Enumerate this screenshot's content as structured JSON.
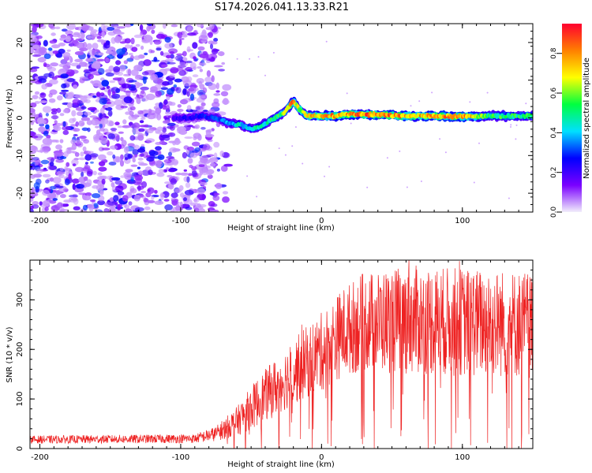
{
  "title": "S174.2026.041.13.33.R21",
  "colors": {
    "snr_line": "#ee2222",
    "axis": "#000000",
    "background": "#ffffff"
  },
  "chart_data": [
    {
      "type": "heatmap",
      "name": "spectrogram",
      "xlabel": "Height of straight line (km)",
      "ylabel": "Frequency (Hz)",
      "xlim": [
        -207,
        150
      ],
      "ylim": [
        -25,
        25
      ],
      "xticks": [
        -200,
        -100,
        0,
        100
      ],
      "xtick_labels": [
        "-200",
        "-100",
        "0",
        "100"
      ],
      "yticks": [
        20,
        10,
        0,
        -10,
        -20
      ],
      "ytick_labels": [
        "20",
        "10",
        "0",
        "-10",
        "-20"
      ],
      "colorbar": {
        "label": "Normalized spectral amplitude",
        "range": [
          0,
          0.95
        ],
        "ticks": [
          0.0,
          0.2,
          0.4,
          0.6,
          0.8
        ],
        "tick_labels": [
          "0.0",
          "0.2",
          "0.4",
          "0.6",
          "0.8"
        ],
        "colors": [
          "#f2eefb",
          "#7a00ff",
          "#0000ff",
          "#00e0ff",
          "#00ff40",
          "#ffff00",
          "#ff8000",
          "#ff0030"
        ]
      },
      "noise_region": {
        "x_from": -207,
        "x_to": -75,
        "fade_to": -65,
        "freq_range": [
          -25,
          25
        ]
      },
      "signal_track": {
        "x": [
          -105,
          -95,
          -85,
          -75,
          -65,
          -58,
          -50,
          -45,
          -40,
          -35,
          -30,
          -25,
          -22,
          -20,
          -18,
          -15,
          -10,
          0,
          10,
          20,
          40,
          60,
          80,
          100,
          120,
          150
        ],
        "freq": [
          0,
          0,
          0.5,
          0,
          -1.5,
          -1.8,
          -3,
          -2.5,
          -1.5,
          -0.5,
          0.5,
          2,
          3.5,
          4.5,
          3.5,
          2,
          0.5,
          0.5,
          0.5,
          1,
          0.8,
          0.5,
          0.5,
          0.3,
          0.5,
          0.5
        ],
        "amplitude": [
          0.25,
          0.28,
          0.3,
          0.35,
          0.45,
          0.5,
          0.5,
          0.55,
          0.55,
          0.6,
          0.65,
          0.75,
          0.85,
          0.9,
          0.85,
          0.75,
          0.8,
          0.9,
          0.9,
          0.9,
          0.95,
          0.9,
          0.9,
          0.92,
          0.6,
          0.6
        ]
      }
    },
    {
      "type": "line",
      "name": "snr",
      "xlabel": "Height of straight line (km)",
      "ylabel": "SNR (10 * v/v)",
      "xlim": [
        -207,
        150
      ],
      "ylim": [
        0,
        380
      ],
      "xticks": [
        -200,
        -100,
        0,
        100
      ],
      "xtick_labels": [
        "-200",
        "-100",
        "0",
        "100"
      ],
      "yticks": [
        0,
        100,
        200,
        300
      ],
      "ytick_labels": [
        "0",
        "100",
        "200",
        "300"
      ],
      "envelope": {
        "x": [
          -207,
          -90,
          -75,
          -60,
          -45,
          -30,
          -15,
          0,
          15,
          30,
          60,
          100,
          150
        ],
        "mean": [
          18,
          20,
          30,
          55,
          95,
          130,
          165,
          195,
          235,
          255,
          260,
          255,
          250
        ],
        "spread": [
          8,
          9,
          15,
          30,
          50,
          60,
          70,
          80,
          90,
          100,
          110,
          110,
          110
        ]
      },
      "peaks": [
        {
          "x": 62,
          "y": 380
        },
        {
          "x": 98,
          "y": 378
        },
        {
          "x": 108,
          "y": 348
        },
        {
          "x": 28,
          "y": 320
        },
        {
          "x": -14,
          "y": 250
        }
      ]
    }
  ]
}
